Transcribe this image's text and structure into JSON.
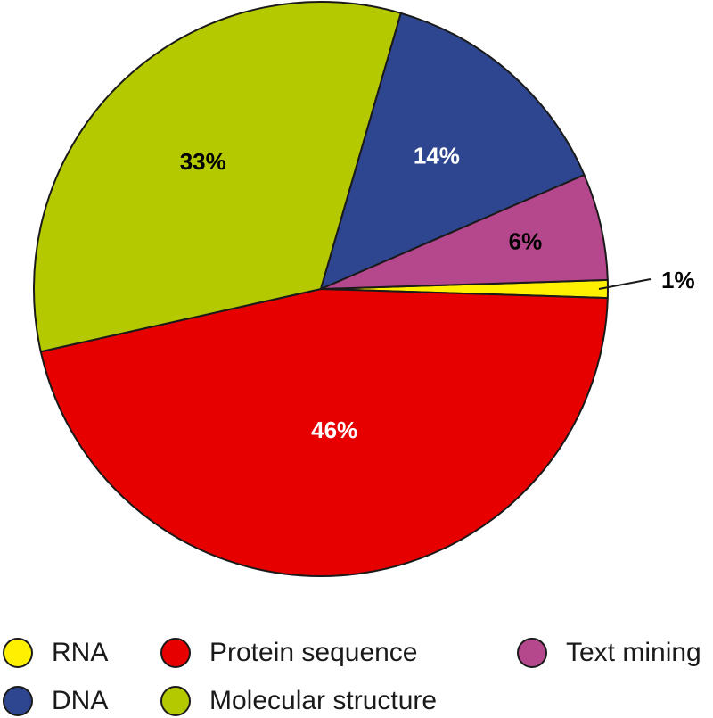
{
  "chart_data": {
    "type": "pie",
    "slices": [
      {
        "name": "RNA",
        "value": 1,
        "label": "1%",
        "color": "#FFEF00",
        "label_color": "#000000"
      },
      {
        "name": "Protein sequence",
        "value": 46,
        "label": "46%",
        "color": "#E60000",
        "label_color": "#FFFFFF"
      },
      {
        "name": "Molecular structure",
        "value": 33,
        "label": "33%",
        "color": "#B5C900",
        "label_color": "#000000"
      },
      {
        "name": "DNA",
        "value": 14,
        "label": "14%",
        "color": "#2E4690",
        "label_color": "#FFFFFF"
      },
      {
        "name": "Text mining",
        "value": 6,
        "label": "6%",
        "color": "#B5478D",
        "label_color": "#000000"
      }
    ],
    "legend": [
      {
        "name": "RNA",
        "color": "#FFEF00"
      },
      {
        "name": "Protein sequence",
        "color": "#E60000"
      },
      {
        "name": "Text mining",
        "color": "#B5478D"
      },
      {
        "name": "DNA",
        "color": "#2E4690"
      },
      {
        "name": "Molecular structure",
        "color": "#B5C900"
      }
    ],
    "legend_placement": "bottom"
  }
}
